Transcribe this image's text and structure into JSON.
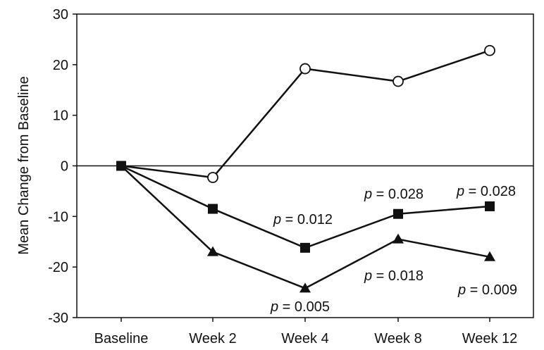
{
  "chart_data": {
    "type": "line",
    "title": "",
    "xlabel": "",
    "ylabel": "Mean Change from Baseline",
    "categories": [
      "Baseline",
      "Week 2",
      "Week 4",
      "Week 8",
      "Week 12"
    ],
    "ylim": [
      -30,
      30
    ],
    "yticks": [
      -30,
      -20,
      -10,
      0,
      10,
      20,
      30
    ],
    "grid": false,
    "series": [
      {
        "name": "open circle",
        "marker": "circle-open",
        "values": [
          0,
          -2.3,
          19.2,
          16.7,
          22.8
        ]
      },
      {
        "name": "filled square",
        "marker": "square",
        "values": [
          0,
          -8.5,
          -16.2,
          -9.5,
          -8.0
        ]
      },
      {
        "name": "filled triangle",
        "marker": "triangle",
        "values": [
          0,
          -17.0,
          -24.2,
          -14.5,
          -18.0
        ]
      }
    ],
    "annotations": [
      {
        "label": "p",
        "text": " = 0.012",
        "category": "Week 4",
        "series": "filled square"
      },
      {
        "label": "p",
        "text": " = 0.028",
        "category": "Week 8",
        "series": "filled square"
      },
      {
        "label": "p",
        "text": " = 0.028",
        "category": "Week 12",
        "series": "filled square"
      },
      {
        "label": "p",
        "text": " = 0.005",
        "category": "Week 4",
        "series": "filled triangle"
      },
      {
        "label": "p",
        "text": " = 0.018",
        "category": "Week 8",
        "series": "filled triangle"
      },
      {
        "label": "p",
        "text": " = 0.009",
        "category": "Week 12",
        "series": "filled triangle"
      }
    ],
    "colors": {
      "line": "#111111",
      "marker_fill": "#111111",
      "open_fill": "#ffffff",
      "axis": "#111111"
    }
  }
}
